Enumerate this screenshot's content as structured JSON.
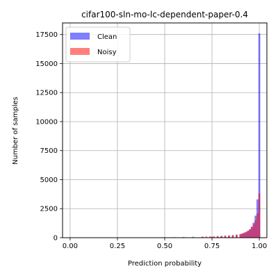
{
  "chart_data": {
    "type": "bar",
    "title": "cifar100-sln-mo-lc-dependent-paper-0.4",
    "xlabel": "Prediction probability",
    "ylabel": "Number of samples",
    "xlim": [
      -0.04,
      1.04
    ],
    "ylim": [
      0,
      18500
    ],
    "xticks": [
      0.0,
      0.25,
      0.5,
      0.75,
      1.0
    ],
    "xtick_labels": [
      "0.00",
      "0.25",
      "0.50",
      "0.75",
      "1.00"
    ],
    "yticks": [
      0,
      2500,
      5000,
      7500,
      10000,
      12500,
      15000,
      17500
    ],
    "ytick_labels": [
      "0",
      "2500",
      "5000",
      "7500",
      "10000",
      "12500",
      "15000",
      "17500"
    ],
    "grid": true,
    "legend_position": "top-left",
    "bin_width": 0.01,
    "series": [
      {
        "name": "Clean",
        "color": "#0000ff",
        "alpha": 0.5,
        "bins": [
          [
            0.4,
            5
          ],
          [
            0.45,
            10
          ],
          [
            0.5,
            15
          ],
          [
            0.55,
            20
          ],
          [
            0.6,
            30
          ],
          [
            0.65,
            40
          ],
          [
            0.7,
            55
          ],
          [
            0.75,
            75
          ],
          [
            0.78,
            90
          ],
          [
            0.8,
            110
          ],
          [
            0.82,
            130
          ],
          [
            0.84,
            150
          ],
          [
            0.86,
            180
          ],
          [
            0.88,
            220
          ],
          [
            0.9,
            280
          ],
          [
            0.91,
            330
          ],
          [
            0.92,
            400
          ],
          [
            0.93,
            480
          ],
          [
            0.94,
            580
          ],
          [
            0.95,
            720
          ],
          [
            0.96,
            950
          ],
          [
            0.97,
            1300
          ],
          [
            0.98,
            1900
          ],
          [
            0.99,
            3300
          ],
          [
            1.0,
            17600
          ]
        ]
      },
      {
        "name": "Noisy",
        "color": "#ff0000",
        "alpha": 0.5,
        "bins": [
          [
            0.4,
            20
          ],
          [
            0.45,
            30
          ],
          [
            0.5,
            40
          ],
          [
            0.55,
            50
          ],
          [
            0.6,
            65
          ],
          [
            0.65,
            80
          ],
          [
            0.7,
            100
          ],
          [
            0.72,
            110
          ],
          [
            0.74,
            120
          ],
          [
            0.76,
            135
          ],
          [
            0.78,
            150
          ],
          [
            0.8,
            170
          ],
          [
            0.82,
            190
          ],
          [
            0.84,
            210
          ],
          [
            0.86,
            240
          ],
          [
            0.88,
            280
          ],
          [
            0.9,
            330
          ],
          [
            0.91,
            380
          ],
          [
            0.92,
            440
          ],
          [
            0.93,
            510
          ],
          [
            0.94,
            600
          ],
          [
            0.95,
            720
          ],
          [
            0.96,
            900
          ],
          [
            0.97,
            1150
          ],
          [
            0.98,
            1500
          ],
          [
            0.99,
            2100
          ],
          [
            1.0,
            3800
          ]
        ]
      }
    ]
  }
}
